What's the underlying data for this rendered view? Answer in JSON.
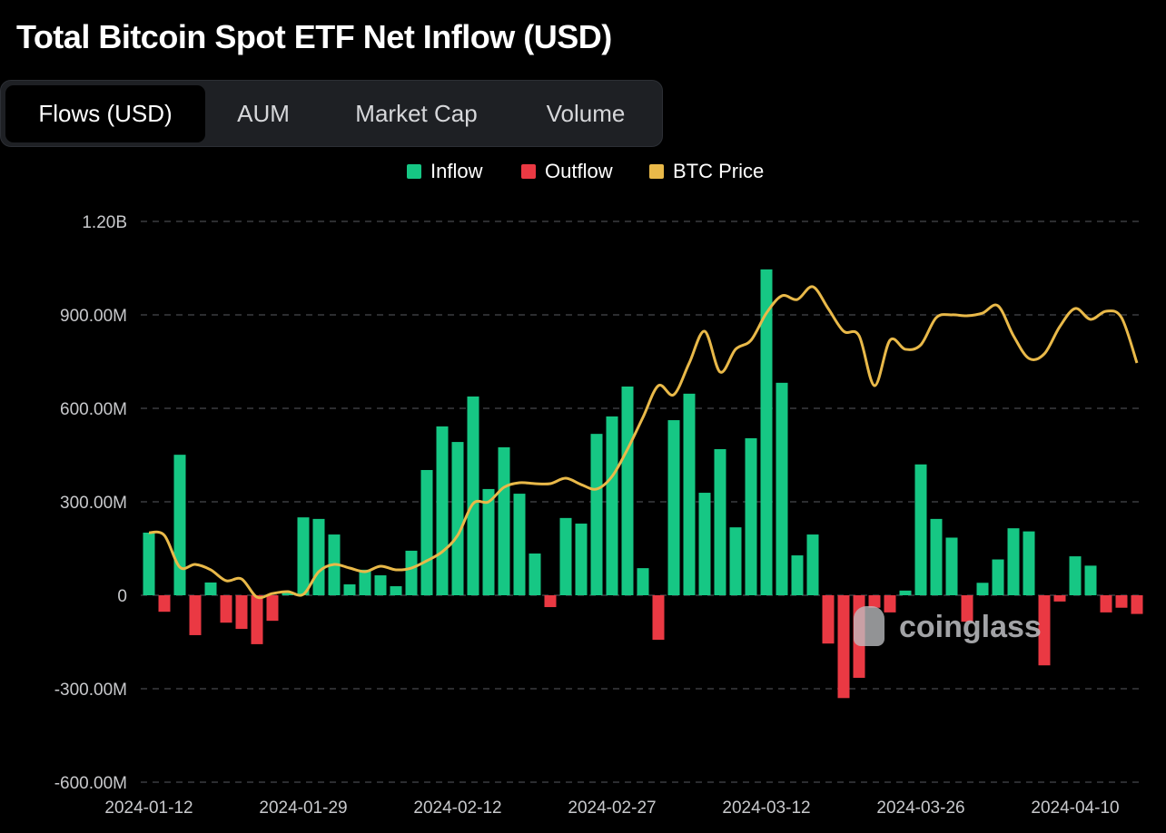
{
  "title": "Total Bitcoin Spot ETF Net Inflow (USD)",
  "tabs": [
    {
      "label": "Flows (USD)",
      "active": true
    },
    {
      "label": "AUM",
      "active": false
    },
    {
      "label": "Market Cap",
      "active": false
    },
    {
      "label": "Volume",
      "active": false
    }
  ],
  "watermark": "coinglass",
  "colors": {
    "inflow": "#16c784",
    "outflow": "#ea3943",
    "btc_price": "#e9b949",
    "background": "#000000"
  },
  "chart_data": {
    "type": "bar",
    "title": "",
    "xlabel": "",
    "ylabel": "",
    "ylim": [
      -600000000,
      1200000000
    ],
    "grid": true,
    "legend": "top-center",
    "legend_entries": [
      "Inflow",
      "Outflow",
      "BTC Price"
    ],
    "y_ticks": [
      "1.20B",
      "900.00M",
      "600.00M",
      "300.00M",
      "0",
      "-300.00M",
      "-600.00M"
    ],
    "x_ticks": [
      "2024-01-12",
      "2024-01-29",
      "2024-02-12",
      "2024-02-27",
      "2024-03-12",
      "2024-03-26",
      "2024-04-10"
    ],
    "dates": [
      "2024-01-12",
      "2024-01-16",
      "2024-01-17",
      "2024-01-18",
      "2024-01-19",
      "2024-01-22",
      "2024-01-23",
      "2024-01-24",
      "2024-01-25",
      "2024-01-26",
      "2024-01-29",
      "2024-01-30",
      "2024-01-31",
      "2024-02-01",
      "2024-02-02",
      "2024-02-05",
      "2024-02-06",
      "2024-02-07",
      "2024-02-08",
      "2024-02-09",
      "2024-02-12",
      "2024-02-13",
      "2024-02-14",
      "2024-02-15",
      "2024-02-16",
      "2024-02-20",
      "2024-02-21",
      "2024-02-22",
      "2024-02-23",
      "2024-02-26",
      "2024-02-27",
      "2024-02-28",
      "2024-02-29",
      "2024-03-01",
      "2024-03-04",
      "2024-03-05",
      "2024-03-06",
      "2024-03-07",
      "2024-03-08",
      "2024-03-11",
      "2024-03-12",
      "2024-03-13",
      "2024-03-14",
      "2024-03-15",
      "2024-03-18",
      "2024-03-19",
      "2024-03-20",
      "2024-03-21",
      "2024-03-22",
      "2024-03-25",
      "2024-03-26",
      "2024-03-27",
      "2024-03-28",
      "2024-04-01",
      "2024-04-02",
      "2024-04-03",
      "2024-04-04",
      "2024-04-05",
      "2024-04-08",
      "2024-04-09",
      "2024-04-10",
      "2024-04-11",
      "2024-04-12",
      "2024-04-15",
      "2024-04-16"
    ],
    "series": [
      {
        "name": "Inflow/Outflow",
        "unit": "USD",
        "values": [
          201000000,
          -53000000,
          451000000,
          -128000000,
          41000000,
          -88000000,
          -108000000,
          -157000000,
          -82000000,
          10000000,
          250000000,
          245000000,
          195000000,
          35000000,
          82000000,
          64000000,
          29000000,
          143000000,
          402000000,
          542000000,
          492000000,
          638000000,
          341000000,
          475000000,
          326000000,
          134000000,
          -38000000,
          248000000,
          230000000,
          518000000,
          574000000,
          670000000,
          87000000,
          -143000000,
          562000000,
          647000000,
          329000000,
          469000000,
          218000000,
          504000000,
          1046000000,
          682000000,
          128000000,
          195000000,
          -155000000,
          -330000000,
          -265000000,
          -40000000,
          -55000000,
          15000000,
          420000000,
          245000000,
          185000000,
          -85000000,
          40000000,
          115000000,
          215000000,
          205000000,
          -225000000,
          -20000000,
          125000000,
          95000000,
          -55000000,
          -40000000,
          -60000000
        ]
      },
      {
        "name": "BTC Price",
        "unit": "USD",
        "values": [
          46610,
          46320,
          42910,
          43200,
          42620,
          41450,
          41640,
          39690,
          40080,
          40280,
          39990,
          42420,
          43200,
          42810,
          42420,
          43010,
          42620,
          42810,
          43590,
          44560,
          46320,
          49730,
          49920,
          51480,
          51970,
          51870,
          51870,
          52450,
          51770,
          51290,
          52650,
          55570,
          58980,
          62390,
          61420,
          64820,
          68230,
          63850,
          66290,
          67260,
          70180,
          72030,
          71640,
          73010,
          70670,
          68230,
          67750,
          62390,
          67260,
          66290,
          66770,
          69690,
          69990,
          69890,
          70180,
          70960,
          67750,
          65310,
          65800,
          68720,
          70670,
          69500,
          70380,
          69690,
          64820
        ]
      }
    ]
  }
}
